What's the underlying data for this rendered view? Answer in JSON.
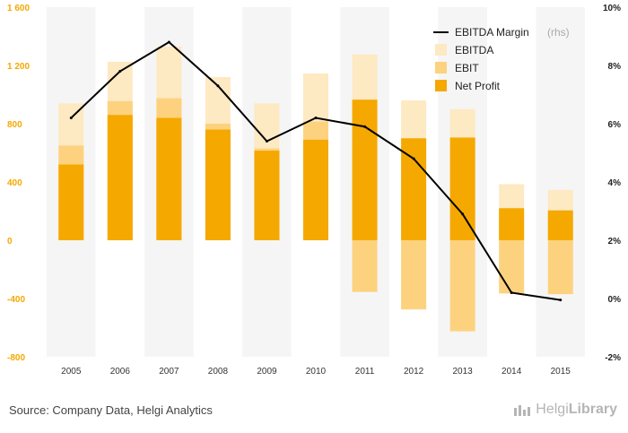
{
  "colors": {
    "ebitda": "#fde9c2",
    "ebit": "#fdd27f",
    "net_profit": "#f5a800",
    "margin_line": "#000000",
    "left_axis_text": "#f5a800",
    "plot_bg": "#f5f5f5"
  },
  "chart_data": {
    "type": "bar",
    "categories": [
      "2005",
      "2006",
      "2007",
      "2008",
      "2009",
      "2010",
      "2011",
      "2012",
      "2013",
      "2014",
      "2015"
    ],
    "series": [
      {
        "name": "EBITDA",
        "axis": "left",
        "values": [
          940,
          1225,
          1330,
          1120,
          940,
          1145,
          1275,
          960,
          900,
          385,
          345
        ]
      },
      {
        "name": "EBIT",
        "axis": "left",
        "values": [
          650,
          955,
          975,
          800,
          630,
          815,
          -355,
          -475,
          -625,
          -365,
          -370
        ]
      },
      {
        "name": "Net Profit",
        "axis": "left",
        "values": [
          520,
          860,
          840,
          760,
          615,
          690,
          965,
          700,
          705,
          220,
          205
        ]
      },
      {
        "name": "EBITDA Margin",
        "axis": "right",
        "type": "line",
        "values": [
          6.2,
          7.8,
          8.8,
          7.3,
          5.4,
          6.2,
          5.9,
          4.8,
          2.9,
          0.2,
          -0.05
        ]
      }
    ],
    "left_axis": {
      "ylim": [
        -800,
        1600
      ],
      "ticks": [
        "1 600",
        "1 200",
        "800",
        "400",
        "0",
        "-400",
        "-800"
      ],
      "tick_values": [
        1600,
        1200,
        800,
        400,
        0,
        -400,
        -800
      ]
    },
    "right_axis": {
      "ylim": [
        -2,
        10
      ],
      "ticks": [
        "10%",
        "8%",
        "6%",
        "4%",
        "2%",
        "0%",
        "-2%"
      ],
      "tick_values": [
        10,
        8,
        6,
        4,
        2,
        0,
        -2
      ]
    },
    "legend": {
      "position": "top-right",
      "margin_label": "EBITDA Margin",
      "margin_suffix": "(rhs)",
      "ebitda_label": "EBITDA",
      "ebit_label": "EBIT",
      "net_profit_label": "Net Profit"
    },
    "grid": "vertical-bands"
  },
  "footer": {
    "source": "Source: Company Data, Helgi Analytics",
    "brand_light": "Helgi",
    "brand_bold": "Library"
  }
}
